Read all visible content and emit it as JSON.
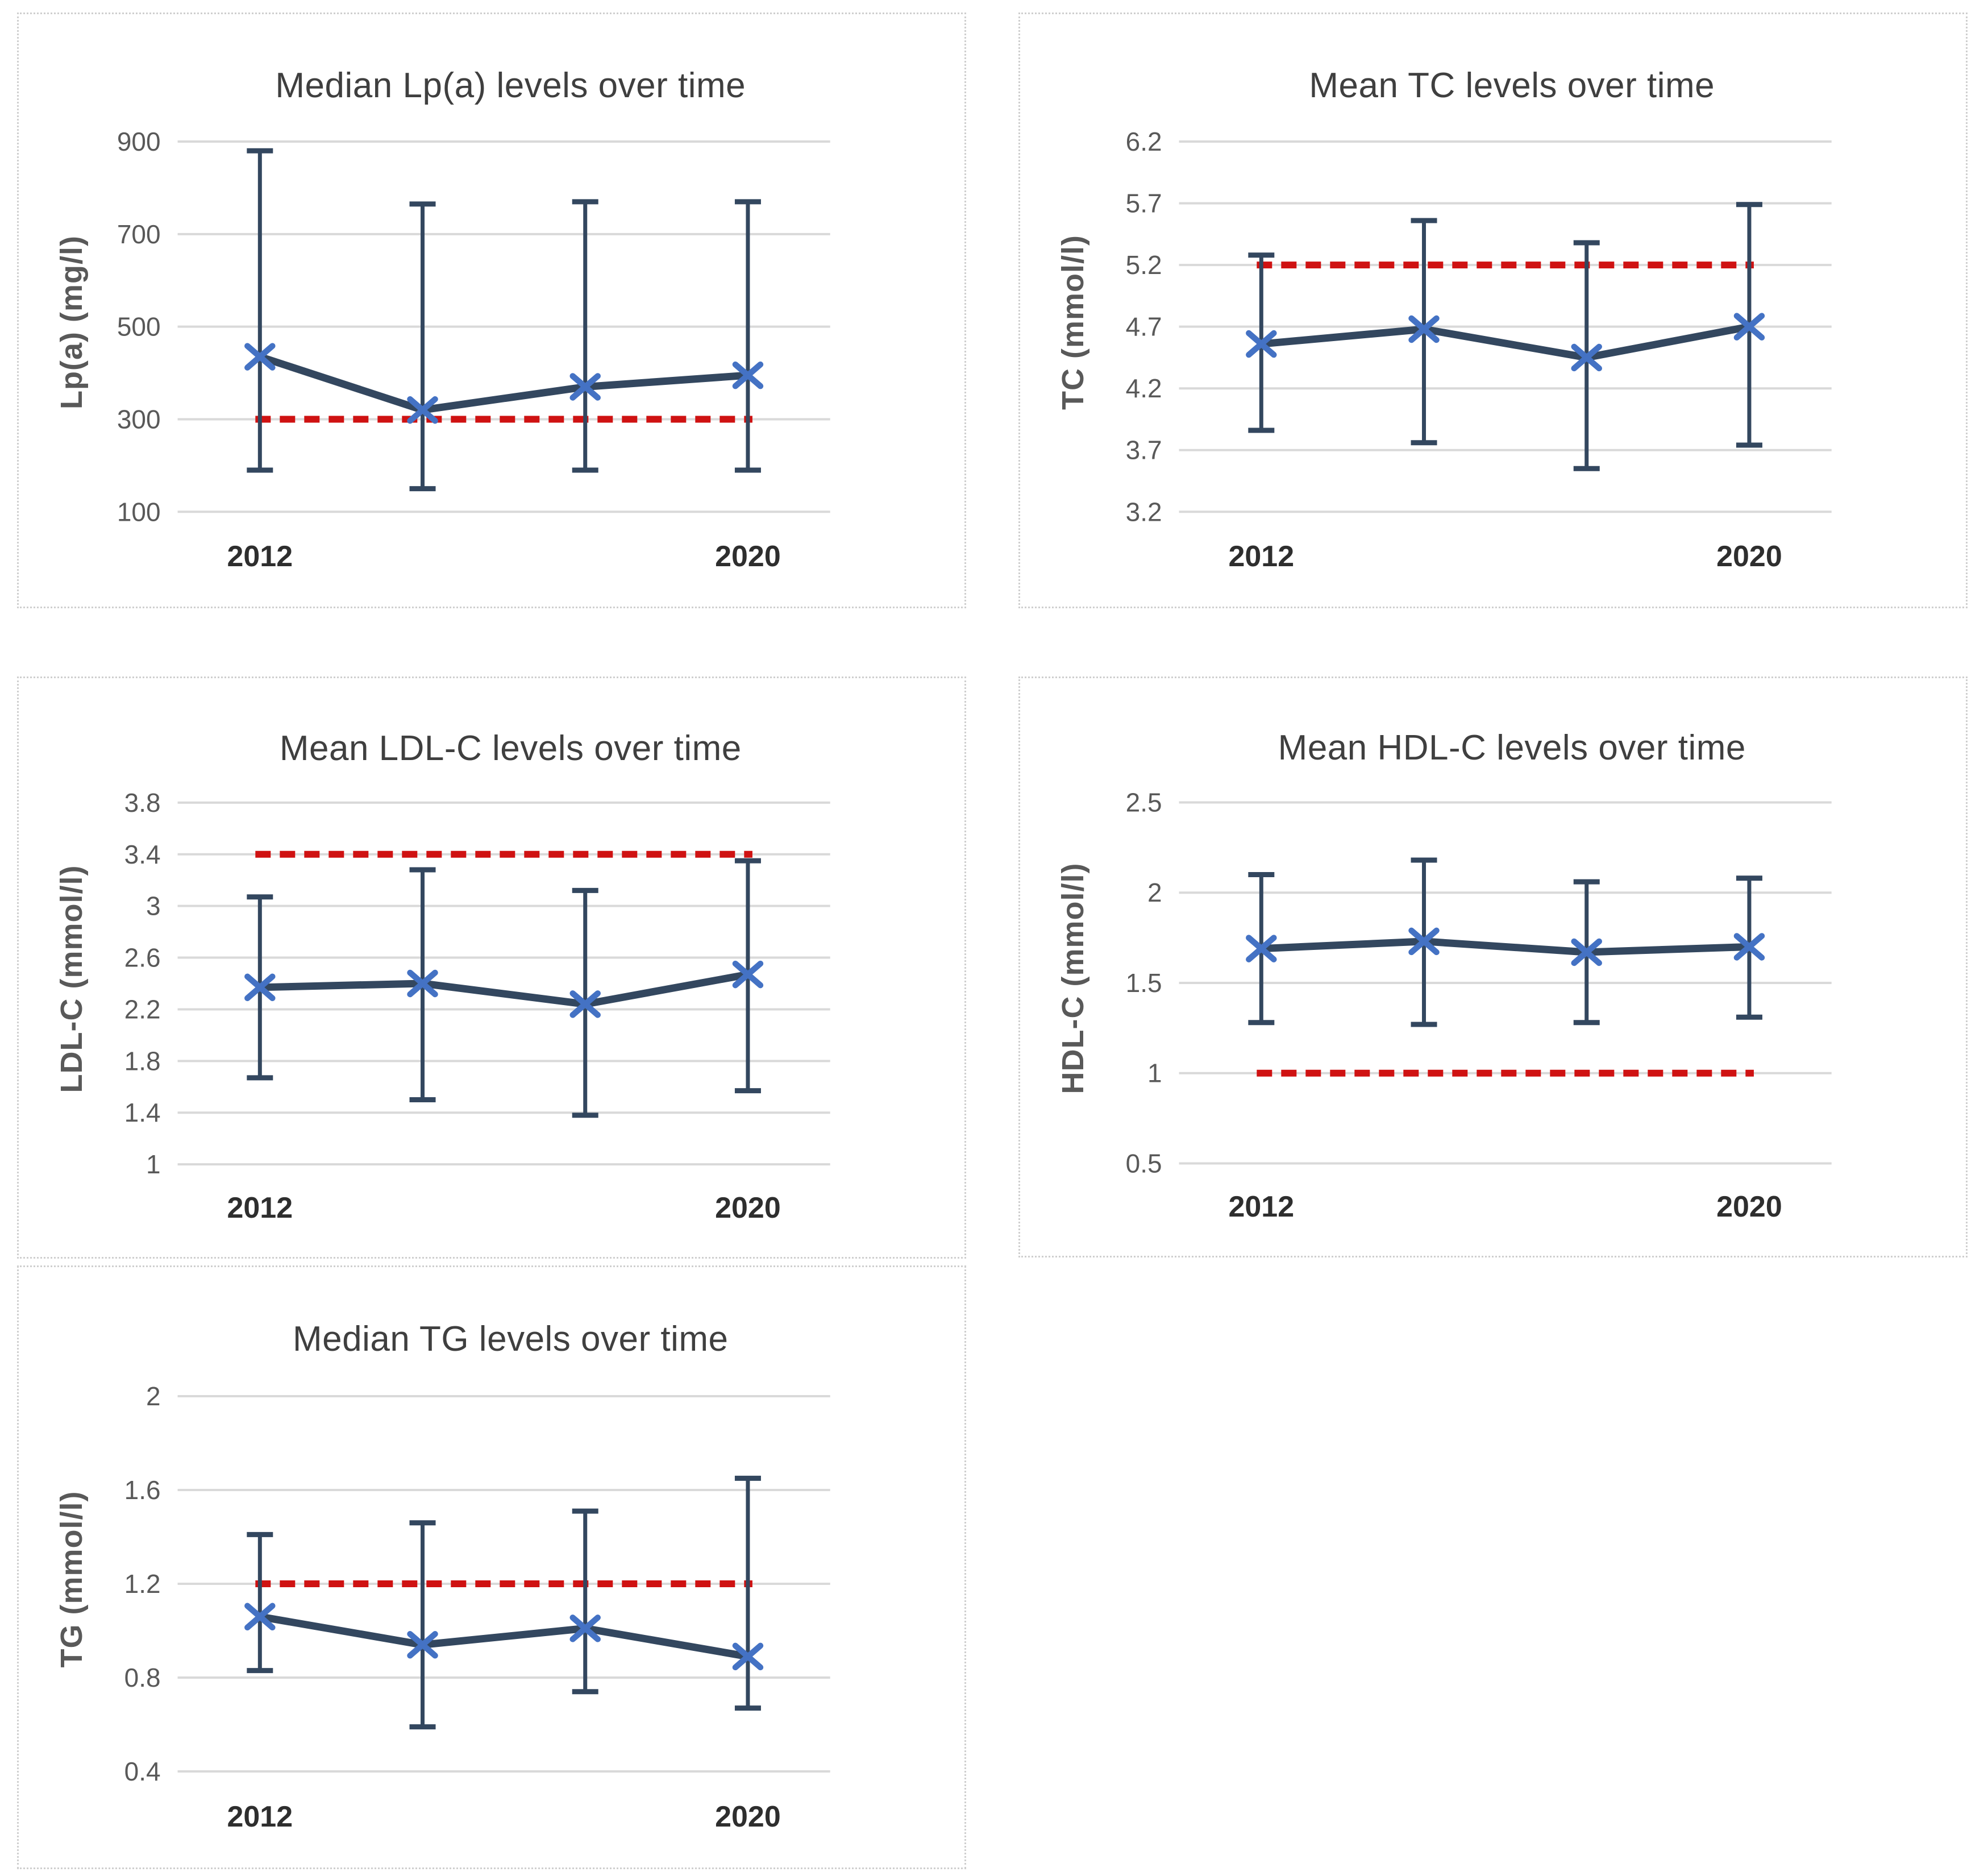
{
  "figure": {
    "description_note": "",
    "background": "#ffffff"
  },
  "colors": {
    "series_line": "#33475f",
    "error_bar": "#33475f",
    "marker": "#4472c4",
    "reference_line": "#cf1212",
    "gridline": "#d9d9d9",
    "title_text": "#3f3f3f",
    "tick_text": "#595959",
    "x_label_text": "#2e2e2e",
    "panel_border": "#cfcfcf"
  },
  "chart_data": [
    {
      "type": "line",
      "title": "Median Lp(a) levels over time",
      "ylabel": "Lp(a) (mg/l)",
      "xlabel": "",
      "xticklabels": [
        "2012",
        "",
        "",
        "2020"
      ],
      "yticks": [
        "900",
        "700",
        "500",
        "300",
        "100"
      ],
      "ylim": [
        100,
        900
      ],
      "grid": true,
      "legend": false,
      "series": [
        {
          "name": "Median Lp(a)",
          "values": [
            435,
            320,
            370,
            395
          ],
          "error_low": [
            190,
            150,
            190,
            190
          ],
          "error_high": [
            880,
            765,
            770,
            770
          ]
        }
      ],
      "reference_line": 300
    },
    {
      "type": "line",
      "title": "Mean TC levels over time",
      "ylabel": "TC (mmol/l)",
      "xlabel": "",
      "xticklabels": [
        "2012",
        "",
        "",
        "2020"
      ],
      "yticks": [
        "6.2",
        "5.7",
        "5.2",
        "4.7",
        "4.2",
        "3.7",
        "3.2"
      ],
      "ylim": [
        3.2,
        6.2
      ],
      "grid": true,
      "legend": false,
      "series": [
        {
          "name": "Mean TC",
          "values": [
            4.56,
            4.68,
            4.45,
            4.7
          ],
          "error_low": [
            3.86,
            3.76,
            3.55,
            3.74
          ],
          "error_high": [
            5.28,
            5.56,
            5.38,
            5.69
          ]
        }
      ],
      "reference_line": 5.2
    },
    {
      "type": "line",
      "title": "Mean LDL-C levels over time",
      "ylabel": "LDL-C (mmol/l)",
      "xlabel": "",
      "xticklabels": [
        "2012",
        "",
        "",
        "2020"
      ],
      "yticks": [
        "3.8",
        "3.4",
        "3",
        "2.6",
        "2.2",
        "1.8",
        "1.4",
        "1"
      ],
      "ylim": [
        1,
        3.8
      ],
      "grid": true,
      "legend": false,
      "series": [
        {
          "name": "Mean LDL-C",
          "values": [
            2.37,
            2.4,
            2.24,
            2.47
          ],
          "error_low": [
            1.67,
            1.5,
            1.38,
            1.57
          ],
          "error_high": [
            3.07,
            3.28,
            3.12,
            3.35
          ]
        }
      ],
      "reference_line": 3.4
    },
    {
      "type": "line",
      "title": "Mean HDL-C levels over time",
      "ylabel": "HDL-C (mmol/l)",
      "xlabel": "",
      "xticklabels": [
        "2012",
        "",
        "",
        "2020"
      ],
      "yticks": [
        "2.5",
        "2",
        "1.5",
        "1",
        "0.5"
      ],
      "ylim": [
        0.5,
        2.5
      ],
      "grid": true,
      "legend": false,
      "series": [
        {
          "name": "Mean HDL-C",
          "values": [
            1.69,
            1.73,
            1.67,
            1.7
          ],
          "error_low": [
            1.28,
            1.27,
            1.28,
            1.31
          ],
          "error_high": [
            2.1,
            2.18,
            2.06,
            2.08
          ]
        }
      ],
      "reference_line": 1
    },
    {
      "type": "line",
      "title": "Median TG levels over time",
      "ylabel": "TG (mmol/l)",
      "xlabel": "",
      "xticklabels": [
        "2012",
        "",
        "",
        "2020"
      ],
      "yticks": [
        "2",
        "1.6",
        "1.2",
        "0.8",
        "0.4"
      ],
      "ylim": [
        0.4,
        2
      ],
      "grid": true,
      "legend": false,
      "series": [
        {
          "name": "Median TG",
          "values": [
            1.06,
            0.94,
            1.01,
            0.89
          ],
          "error_low": [
            0.83,
            0.59,
            0.74,
            0.67
          ],
          "error_high": [
            1.41,
            1.46,
            1.51,
            1.65
          ]
        }
      ],
      "reference_line": 1.2
    }
  ]
}
